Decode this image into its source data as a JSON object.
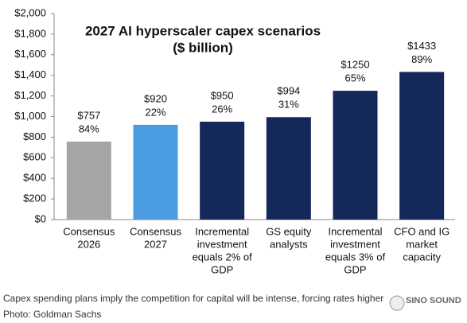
{
  "chart_data": {
    "type": "bar",
    "title": "2027 AI hyperscaler capex scenarios",
    "subtitle": "($ billion)",
    "categories": [
      [
        "Consensus",
        "2026"
      ],
      [
        "Consensus",
        "2027"
      ],
      [
        "Incremental",
        "investment",
        "equals 2% of",
        "GDP"
      ],
      [
        "GS equity",
        "analysts"
      ],
      [
        "Incremental",
        "investment",
        "equals 3% of",
        "GDP"
      ],
      [
        "CFO and IG",
        "market",
        "capacity"
      ]
    ],
    "values": [
      757,
      920,
      950,
      994,
      1250,
      1433
    ],
    "value_labels": [
      "$757",
      "$920",
      "$950",
      "$994",
      "$1250",
      "$1433"
    ],
    "growth_labels": [
      "84%",
      "22%",
      "26%",
      "31%",
      "65%",
      "89%"
    ],
    "colors": [
      "#a5a5a5",
      "#4a9be0",
      "#14285a",
      "#14285a",
      "#14285a",
      "#14285a"
    ],
    "ylim": [
      0,
      2000
    ],
    "yticks": [
      {
        "value": 0,
        "label": "$0"
      },
      {
        "value": 200,
        "label": "$200"
      },
      {
        "value": 400,
        "label": "$400"
      },
      {
        "value": 600,
        "label": "$600"
      },
      {
        "value": 800,
        "label": "$800"
      },
      {
        "value": 1000,
        "label": "$1,000"
      },
      {
        "value": 1200,
        "label": "$1,200"
      },
      {
        "value": 1400,
        "label": "$1,400"
      },
      {
        "value": 1600,
        "label": "$1,600"
      },
      {
        "value": 1800,
        "label": "$1,800"
      },
      {
        "value": 2000,
        "label": "$2,000"
      }
    ],
    "grid": false
  },
  "caption": "Capex spending plans imply the competition for capital will be intense, forcing rates higher",
  "credit": "Photo: Goldman Sachs",
  "watermark": "SINO SOUND"
}
